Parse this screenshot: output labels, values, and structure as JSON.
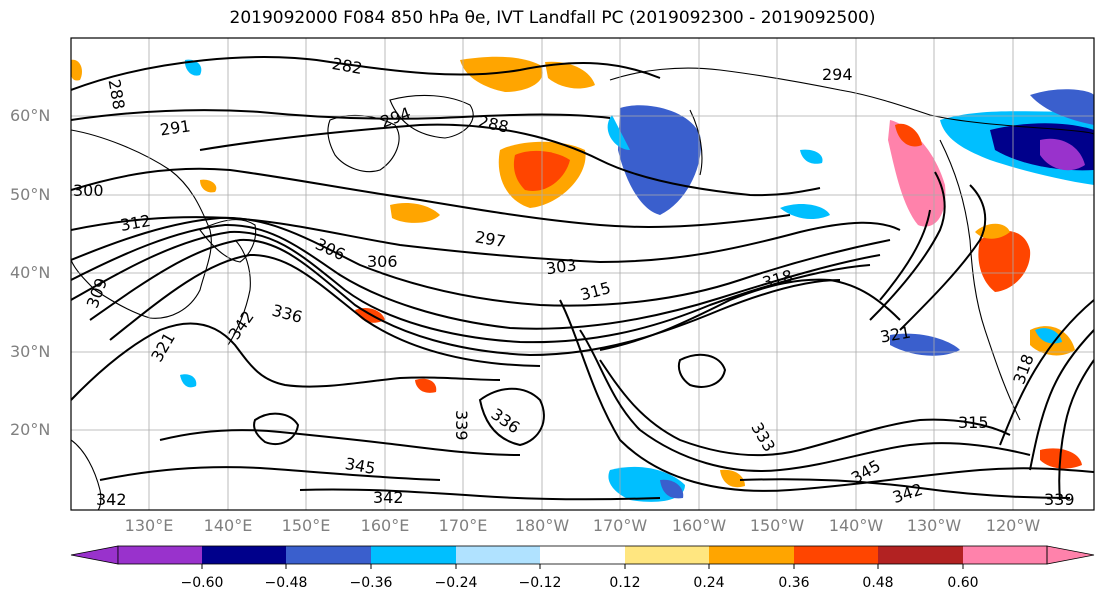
{
  "title": "2019092000 F084 850 hPa θe, IVT Landfall PC (2019092300 - 2019092500)",
  "map": {
    "lat_labels": [
      "60°N",
      "50°N",
      "40°N",
      "30°N",
      "20°N"
    ],
    "lon_labels": [
      "130°E",
      "140°E",
      "150°E",
      "160°E",
      "170°E",
      "180°W",
      "170°W",
      "160°W",
      "150°W",
      "140°W",
      "130°W",
      "120°W"
    ],
    "contour_labels": [
      "288",
      "282",
      "294",
      "291",
      "294",
      "288",
      "300",
      "312",
      "297",
      "306",
      "303",
      "318",
      "315",
      "306",
      "336",
      "342",
      "309",
      "321",
      "336",
      "339",
      "333",
      "345",
      "342",
      "342",
      "345",
      "315",
      "318",
      "321",
      "342",
      "339"
    ]
  },
  "colorbar": {
    "ticks": [
      "−0.60",
      "−0.48",
      "−0.36",
      "−0.24",
      "−0.12",
      "0.12",
      "0.24",
      "0.36",
      "0.48",
      "0.60"
    ],
    "colors": [
      "#9932cc",
      "#00008b",
      "#3a5fcd",
      "#00bfff",
      "#b0e2ff",
      "#ffffff",
      "#ffe680",
      "#ffa500",
      "#ff4500",
      "#b22222",
      "#ff82ab"
    ]
  }
}
